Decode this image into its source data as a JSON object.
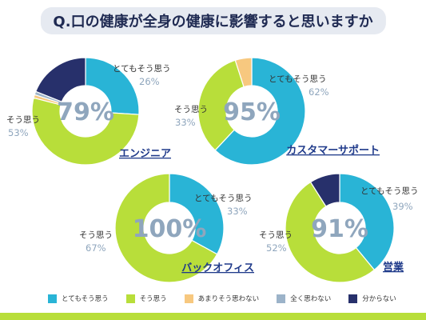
{
  "title": "Q.口の健康が全身の健康に影響すると思いますか",
  "colors": {
    "とてもそう思う": "#29b4d6",
    "そう思う": "#b8de3a",
    "あまりそう思わない": "#f7c87f",
    "全く思わない": "#9cb3c9",
    "分からない": "#27306b"
  },
  "legend": [
    "とてもそう思う",
    "そう思う",
    "あまりそう思わない",
    "全く思わない",
    "分からない"
  ],
  "chart_data": [
    {
      "type": "pie",
      "title": "エンジニア",
      "center_label": "79%",
      "categories": [
        "とてもそう思う",
        "そう思う",
        "あまりそう思わない",
        "全く思わない",
        "分からない"
      ],
      "values": [
        26,
        53,
        1,
        1,
        19
      ],
      "labels": [
        {
          "text": "とてもそう思う",
          "pct": "26%"
        },
        {
          "text": "そう思う",
          "pct": "53%"
        }
      ]
    },
    {
      "type": "pie",
      "title": "カスタマーサポート",
      "center_label": "95%",
      "categories": [
        "とてもそう思う",
        "そう思う",
        "あまりそう思わない"
      ],
      "values": [
        62,
        33,
        5
      ],
      "labels": [
        {
          "text": "とてもそう思う",
          "pct": "62%"
        },
        {
          "text": "そう思う",
          "pct": "33%"
        }
      ]
    },
    {
      "type": "pie",
      "title": "バックオフィス",
      "center_label": "100%",
      "categories": [
        "とてもそう思う",
        "そう思う"
      ],
      "values": [
        33,
        67
      ],
      "labels": [
        {
          "text": "とてもそう思う",
          "pct": "33%"
        },
        {
          "text": "そう思う",
          "pct": "67%"
        }
      ]
    },
    {
      "type": "pie",
      "title": "営業",
      "center_label": "91%",
      "categories": [
        "とてもそう思う",
        "そう思う",
        "分からない"
      ],
      "values": [
        39,
        52,
        9
      ],
      "labels": [
        {
          "text": "とてもそう思う",
          "pct": "39%"
        },
        {
          "text": "そう思う",
          "pct": "52%"
        }
      ]
    }
  ]
}
